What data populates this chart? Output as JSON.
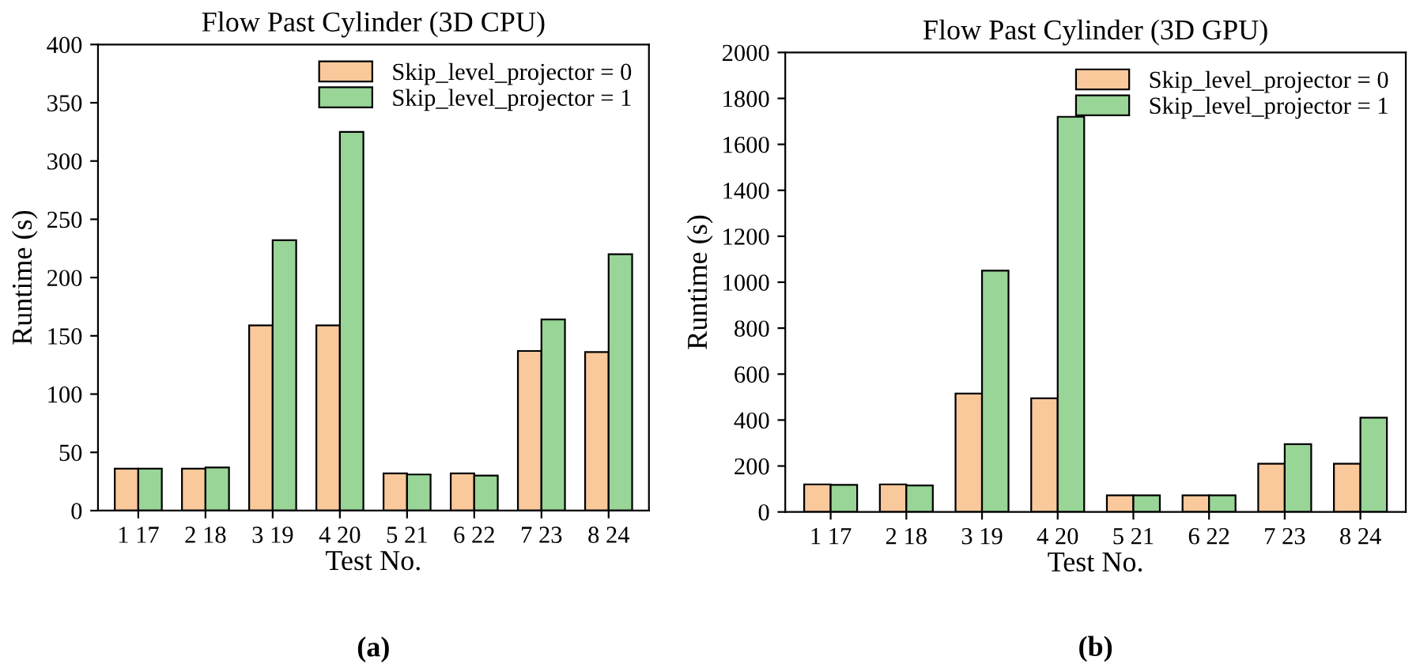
{
  "chart_data": [
    {
      "type": "bar",
      "title": "Flow Past Cylinder (3D CPU)",
      "xlabel": "Test No.",
      "ylabel": "Runtime (s)",
      "categories": [
        "1 17",
        "2 18",
        "3 19",
        "4 20",
        "5 21",
        "6 22",
        "7 23",
        "8 24"
      ],
      "series": [
        {
          "name": "Skip_level_projector = 0",
          "color": "#f9c89b",
          "values": [
            36,
            36,
            159,
            159,
            32,
            32,
            137,
            136
          ]
        },
        {
          "name": "Skip_level_projector = 1",
          "color": "#98d597",
          "values": [
            36,
            37,
            232,
            325,
            31,
            30,
            164,
            220
          ]
        }
      ],
      "ylim": [
        0,
        400
      ],
      "yticks": [
        0,
        50,
        100,
        150,
        200,
        250,
        300,
        350,
        400
      ],
      "grid": false,
      "legend": "top right",
      "annotations": [
        "(a)"
      ]
    },
    {
      "type": "bar",
      "title": "Flow Past Cylinder (3D GPU)",
      "xlabel": "Test No.",
      "ylabel": "Runtime (s)",
      "categories": [
        "1 17",
        "2 18",
        "3 19",
        "4 20",
        "5 21",
        "6 22",
        "7 23",
        "8 24"
      ],
      "series": [
        {
          "name": "Skip_level_projector = 0",
          "color": "#f9c89b",
          "values": [
            120,
            120,
            515,
            495,
            72,
            72,
            210,
            210
          ]
        },
        {
          "name": "Skip_level_projector = 1",
          "color": "#98d597",
          "values": [
            118,
            115,
            1050,
            1720,
            72,
            72,
            295,
            410
          ]
        }
      ],
      "ylim": [
        0,
        2000
      ],
      "yticks": [
        0,
        200,
        400,
        600,
        800,
        1000,
        1200,
        1400,
        1600,
        1800,
        2000
      ],
      "grid": false,
      "legend": "top right",
      "annotations": [
        "(b)"
      ]
    }
  ]
}
